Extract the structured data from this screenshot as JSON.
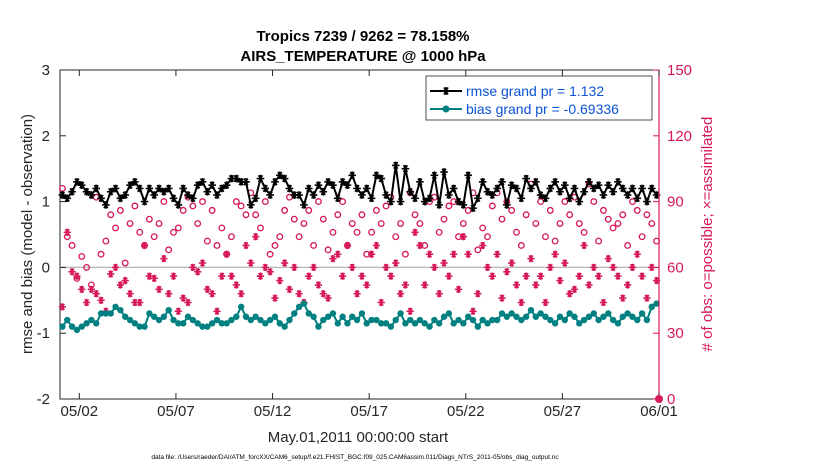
{
  "chart_data": {
    "type": "line",
    "title": "Tropics 7239 / 9262 = 78.158%",
    "subtitle": "AIRS_TEMPERATURE @ 1000 hPa",
    "xlabel": "May.01,2011 00:00:00 start",
    "ylabel_left": "rmse and bias (model - observation)",
    "ylabel_right": "# of obs: o=possible; ×=assimilated",
    "xlim": [
      0,
      31
    ],
    "ylim_left": [
      -2,
      3
    ],
    "ylim_right": [
      0,
      150
    ],
    "xticks": [
      1,
      6,
      11,
      16,
      21,
      26,
      31
    ],
    "xtick_labels": [
      "05/02",
      "05/07",
      "05/12",
      "05/17",
      "05/22",
      "05/27",
      "06/01"
    ],
    "yticks_left": [
      -2,
      -1,
      0,
      1,
      2,
      3
    ],
    "yticks_right": [
      0,
      30,
      60,
      90,
      120,
      150
    ],
    "legend": {
      "position": "top-right",
      "entries": [
        "rmse grand pr = 1.132",
        "bias grand pr = -0.69336"
      ]
    },
    "colors": {
      "rmse": "#000000",
      "bias": "#008080",
      "obs": "#d6185a",
      "zero_line": "#bdbdbd",
      "axis": "#262626",
      "right_axis": "#d6185a",
      "legend_text": "#0a52d6"
    },
    "footnote": "data file: /Users/raeder/DAI/ATM_forcXX/CAM6_setup/f.e21.FHIST_BGC.f09_025.CAM6assim.011/Diags_NTrS_2011-05/obs_diag_output.nc",
    "n_points": 124,
    "x_step_days": 0.25,
    "x_start": 0.125,
    "series": [
      {
        "name": "rmse",
        "marker": "asterisk-line",
        "axis": "left",
        "values": [
          1.1,
          1.05,
          1.15,
          1.3,
          1.25,
          1.15,
          1.1,
          1.2,
          1.05,
          0.95,
          1.15,
          1.2,
          1.05,
          1.1,
          1.25,
          1.3,
          1.2,
          1.0,
          1.2,
          1.1,
          1.2,
          1.15,
          1.2,
          1.05,
          0.95,
          1.2,
          1.1,
          1.05,
          1.25,
          1.3,
          1.15,
          1.25,
          1.1,
          1.2,
          1.25,
          1.35,
          1.35,
          1.3,
          1.3,
          0.95,
          1.05,
          1.35,
          1.2,
          1.1,
          1.3,
          1.4,
          1.35,
          1.2,
          1.1,
          1.1,
          0.95,
          1.2,
          1.1,
          1.25,
          1.15,
          1.3,
          1.25,
          1.05,
          1.3,
          1.25,
          1.4,
          1.2,
          1.1,
          1.2,
          1.05,
          1.4,
          1.35,
          1.1,
          1.0,
          1.55,
          1.0,
          1.5,
          1.15,
          1.05,
          1.3,
          1.0,
          1.05,
          1.4,
          0.95,
          1.45,
          1.1,
          1.2,
          1.0,
          0.95,
          1.4,
          0.9,
          1.05,
          1.3,
          1.15,
          1.1,
          1.2,
          1.3,
          0.95,
          1.25,
          1.2,
          1.05,
          1.35,
          1.2,
          1.3,
          1.1,
          1.05,
          1.2,
          1.3,
          1.15,
          1.25,
          1.05,
          1.2,
          1.0,
          1.15,
          1.3,
          1.2,
          1.25,
          1.1,
          1.25,
          1.15,
          1.3,
          1.2,
          1.1,
          1.2,
          1.05,
          1.2,
          1.0,
          1.2,
          1.1
        ]
      },
      {
        "name": "bias",
        "marker": "dot-line",
        "axis": "left",
        "values": [
          -0.9,
          -0.8,
          -0.9,
          -0.95,
          -0.9,
          -0.85,
          -0.8,
          -0.85,
          -0.7,
          -0.7,
          -0.7,
          -0.6,
          -0.65,
          -0.75,
          -0.8,
          -0.85,
          -0.9,
          -0.9,
          -0.7,
          -0.75,
          -0.8,
          -0.75,
          -0.65,
          -0.8,
          -0.85,
          -0.85,
          -0.75,
          -0.8,
          -0.85,
          -0.9,
          -0.9,
          -0.85,
          -0.8,
          -0.85,
          -0.85,
          -0.8,
          -0.75,
          -0.6,
          -0.75,
          -0.8,
          -0.75,
          -0.8,
          -0.85,
          -0.8,
          -0.75,
          -0.85,
          -0.9,
          -0.8,
          -0.7,
          -0.6,
          -0.55,
          -0.7,
          -0.75,
          -0.9,
          -0.8,
          -0.75,
          -0.7,
          -0.85,
          -0.75,
          -0.85,
          -0.75,
          -0.8,
          -0.7,
          -0.85,
          -0.8,
          -0.8,
          -0.85,
          -0.85,
          -0.9,
          -0.8,
          -0.7,
          -0.85,
          -0.8,
          -0.85,
          -0.8,
          -0.85,
          -0.9,
          -0.8,
          -0.85,
          -0.75,
          -0.7,
          -0.85,
          -0.8,
          -0.85,
          -0.75,
          -0.8,
          -0.9,
          -0.8,
          -0.85,
          -0.8,
          -0.8,
          -0.7,
          -0.75,
          -0.7,
          -0.75,
          -0.8,
          -0.75,
          -0.65,
          -0.75,
          -0.7,
          -0.75,
          -0.8,
          -0.85,
          -0.75,
          -0.8,
          -0.7,
          -0.75,
          -0.85,
          -0.8,
          -0.75,
          -0.7,
          -0.8,
          -0.75,
          -0.7,
          -0.8,
          -0.85,
          -0.75,
          -0.7,
          -0.75,
          -0.8,
          -0.7,
          -0.8,
          -0.6,
          -0.55
        ]
      },
      {
        "name": "possible",
        "marker": "o",
        "axis": "right",
        "values": [
          96,
          74,
          70,
          55,
          65,
          60,
          52,
          92,
          66,
          72,
          84,
          78,
          86,
          62,
          80,
          88,
          76,
          70,
          82,
          74,
          80,
          90,
          68,
          76,
          78,
          86,
          92,
          88,
          80,
          90,
          72,
          86,
          70,
          78,
          66,
          74,
          90,
          88,
          84,
          94,
          84,
          78,
          90,
          66,
          70,
          74,
          86,
          92,
          82,
          74,
          80,
          86,
          70,
          90,
          82,
          68,
          76,
          84,
          90,
          70,
          80,
          76,
          84,
          66,
          76,
          86,
          80,
          88,
          92,
          74,
          80,
          66,
          94,
          84,
          80,
          70,
          90,
          92,
          76,
          82,
          88,
          90,
          74,
          80,
          86,
          94,
          68,
          78,
          74,
          88,
          94,
          82,
          90,
          86,
          76,
          70,
          84,
          98,
          80,
          90,
          74,
          86,
          72,
          80,
          90,
          84,
          92,
          80,
          76,
          98,
          90,
          72,
          86,
          82,
          78,
          80,
          84,
          70,
          90,
          86,
          74,
          84,
          80,
          72
        ]
      },
      {
        "name": "assimilated",
        "marker": "asterisk",
        "axis": "right",
        "values": [
          42,
          76,
          58,
          56,
          50,
          44,
          50,
          48,
          45,
          40,
          57,
          60,
          52,
          54,
          48,
          44,
          44,
          70,
          56,
          55,
          50,
          64,
          48,
          56,
          40,
          46,
          44,
          60,
          58,
          62,
          50,
          48,
          40,
          56,
          66,
          56,
          52,
          48,
          70,
          62,
          74,
          56,
          60,
          58,
          46,
          54,
          62,
          50,
          60,
          48,
          44,
          56,
          60,
          52,
          48,
          46,
          64,
          66,
          56,
          70,
          60,
          48,
          56,
          52,
          66,
          70,
          44,
          60,
          56,
          62,
          48,
          52,
          40,
          76,
          70,
          52,
          66,
          60,
          48,
          62,
          56,
          66,
          50,
          74,
          66,
          40,
          48,
          70,
          60,
          56,
          66,
          46,
          58,
          62,
          52,
          44,
          56,
          64,
          52,
          56,
          44,
          60,
          66,
          54,
          62,
          48,
          50,
          56,
          70,
          52,
          60,
          56,
          44,
          64,
          60,
          56,
          46,
          52,
          60,
          66,
          56,
          46,
          60,
          54
        ]
      }
    ]
  }
}
